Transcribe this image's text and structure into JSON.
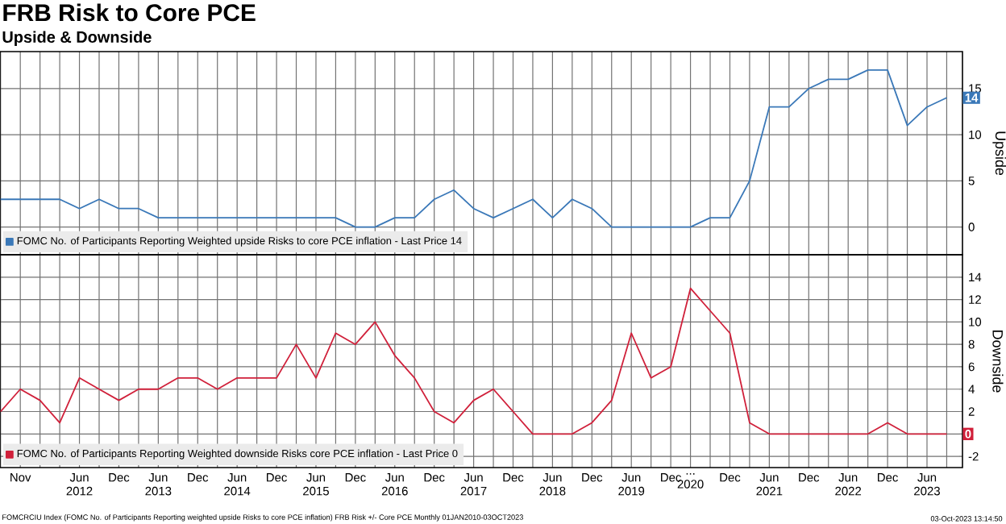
{
  "chart_data": [
    {
      "type": "line",
      "title": "FRB Risk to Core PCE",
      "subtitle": "Upside & Downside",
      "ylabel": "Upside",
      "categories": [
        null,
        null,
        null,
        null,
        null,
        null,
        null,
        null,
        null,
        null,
        null,
        null,
        null,
        null,
        null,
        null,
        null,
        null,
        null,
        null,
        null,
        null,
        null,
        null,
        null,
        null,
        null,
        null,
        null,
        null,
        null,
        null,
        null,
        null,
        null,
        null,
        null,
        null,
        null,
        null,
        null,
        null,
        null,
        null,
        null,
        null,
        null,
        null,
        null
      ],
      "series": [
        {
          "name": "FOMC No. of Participants Reporting Weighted upside Risks to core PCE inflation - Last Price 14",
          "color": "#3a78b8",
          "values": [
            3,
            3,
            3,
            3,
            2,
            3,
            2,
            2,
            1,
            1,
            1,
            1,
            1,
            1,
            1,
            1,
            1,
            1,
            0,
            0,
            1,
            1,
            3,
            4,
            2,
            1,
            2,
            3,
            1,
            3,
            2,
            0,
            0,
            0,
            0,
            0,
            1,
            1,
            5,
            13,
            13,
            15,
            16,
            16,
            17,
            17,
            11,
            13,
            14
          ],
          "value_labels": [
            null,
            null,
            null,
            null,
            null,
            null,
            null,
            null,
            null,
            null,
            null,
            null,
            null,
            null,
            null,
            null,
            null,
            null,
            null,
            null,
            null,
            null,
            null,
            null,
            null,
            null,
            null,
            null,
            null,
            null,
            null,
            null,
            null,
            null,
            null,
            null,
            null,
            null,
            null,
            null,
            null,
            null,
            null,
            null,
            null,
            null,
            null,
            null,
            "14"
          ]
        }
      ],
      "ylim": [
        -3,
        19
      ],
      "yticks": [
        0,
        5,
        10,
        15
      ],
      "grid": true,
      "legend": "bottom left",
      "tick_labels": "y"
    },
    {
      "type": "line",
      "ylabel": "Downside",
      "categories": [
        null,
        "Nov",
        null,
        null,
        "Jun 2012",
        null,
        "Dec",
        null,
        "Jun 2013",
        null,
        "Dec",
        null,
        "Jun 2014",
        null,
        "Dec",
        null,
        "Jun 2015",
        null,
        "Dec",
        null,
        "Jun 2016",
        null,
        "Dec",
        null,
        "Jun 2017",
        null,
        "Dec",
        null,
        "Jun 2018",
        null,
        "Dec",
        null,
        "Jun 2019",
        null,
        "Dec",
        "... 2020",
        null,
        "Dec",
        null,
        "Jun 2021",
        null,
        "Dec",
        null,
        "Jun 2022",
        null,
        "Dec",
        null,
        "Jun 2023",
        null
      ],
      "series": [
        {
          "name": "FOMC No. of Participants Reporting Weighted downside Risks core PCE inflation - Last Price 0",
          "color": "#d0203a",
          "values": [
            2,
            4,
            3,
            1,
            5,
            4,
            3,
            4,
            4,
            5,
            5,
            4,
            5,
            5,
            5,
            8,
            5,
            9,
            8,
            10,
            7,
            5,
            2,
            1,
            3,
            4,
            2,
            0,
            0,
            0,
            1,
            3,
            9,
            5,
            6,
            13,
            11,
            9,
            1,
            0,
            0,
            0,
            0,
            0,
            0,
            1,
            0,
            0,
            0
          ],
          "value_labels": [
            null,
            null,
            null,
            null,
            null,
            null,
            null,
            null,
            null,
            null,
            null,
            null,
            null,
            null,
            null,
            null,
            null,
            null,
            null,
            null,
            null,
            null,
            null,
            null,
            null,
            null,
            null,
            null,
            null,
            null,
            null,
            null,
            null,
            null,
            null,
            null,
            null,
            null,
            null,
            null,
            null,
            null,
            null,
            null,
            null,
            null,
            null,
            null,
            "0"
          ]
        }
      ],
      "ylim": [
        -3,
        16
      ],
      "yticks": [
        -2,
        {
          "value": 0,
          "label": null
        },
        2,
        4,
        6,
        8,
        10,
        12,
        14
      ],
      "grid": true,
      "legend": "bottom left",
      "annotations": [
        "FOMCRCIU Index (FOMC No. of Participants Reporting weighted upside Risks to core PCE inflation) FRB Risk +/- Core PCE  Monthly 01JAN2010-03OCT2023",
        "03-Oct-2023 13:14:50"
      ]
    }
  ]
}
